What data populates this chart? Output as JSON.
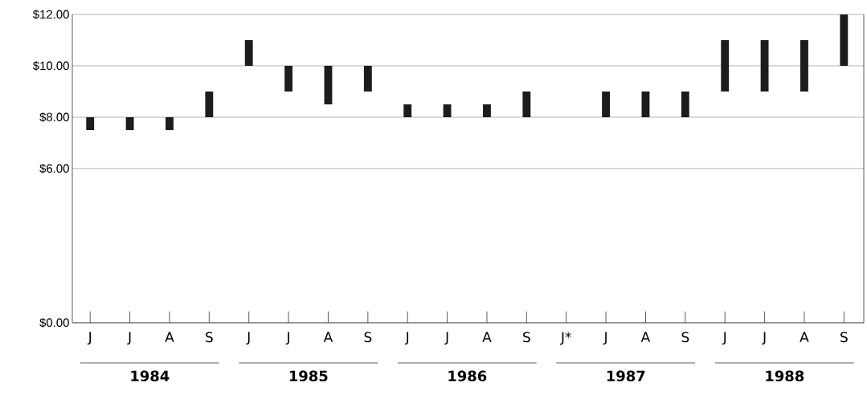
{
  "chart_data": {
    "type": "bar",
    "categories": [
      "J",
      "J",
      "A",
      "S",
      "J",
      "J",
      "A",
      "S",
      "J",
      "J",
      "A",
      "S",
      "J*",
      "J",
      "A",
      "S",
      "J",
      "J",
      "A",
      "S"
    ],
    "base": [
      7.5,
      7.5,
      7.5,
      8,
      10,
      9,
      8.5,
      9,
      8,
      8,
      8,
      8,
      null,
      8,
      8,
      8,
      9,
      9,
      9,
      10
    ],
    "values": [
      0.5,
      0.5,
      0.5,
      1,
      1,
      1,
      1.5,
      1,
      0.5,
      0.5,
      0.5,
      1,
      null,
      1,
      1,
      1,
      2,
      2,
      2,
      2
    ],
    "color": "#1c1c1c",
    "ylim": [
      0,
      12
    ],
    "yticks": [
      {
        "value": 0,
        "label": "$0.00"
      },
      {
        "value": 6,
        "label": "$6.00"
      },
      {
        "value": 8,
        "label": "$8.00"
      },
      {
        "value": 10,
        "label": "$10.00"
      },
      {
        "value": 12,
        "label": "$12.00"
      }
    ],
    "grid": "y",
    "annotations": [
      "1984",
      "1985",
      "1986",
      "1987",
      "1988"
    ]
  }
}
